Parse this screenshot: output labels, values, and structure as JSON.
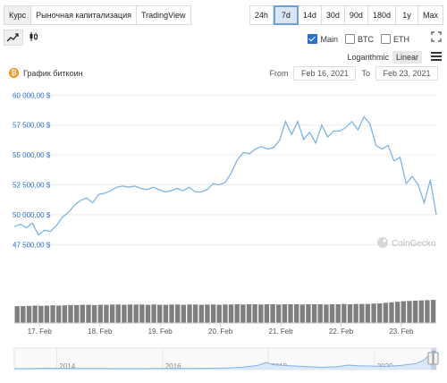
{
  "tabs": [
    {
      "label": "Курс",
      "active": true
    },
    {
      "label": "Рыночная капитализация",
      "active": false
    },
    {
      "label": "TradingView",
      "active": false
    }
  ],
  "ranges": [
    {
      "label": "24h",
      "active": false
    },
    {
      "label": "7d",
      "active": true
    },
    {
      "label": "14d",
      "active": false
    },
    {
      "label": "30d",
      "active": false
    },
    {
      "label": "90d",
      "active": false
    },
    {
      "label": "180d",
      "active": false
    },
    {
      "label": "1y",
      "active": false
    },
    {
      "label": "Max",
      "active": false
    }
  ],
  "series_toggles": [
    {
      "label": "Main",
      "checked": true
    },
    {
      "label": "BTC",
      "checked": false
    },
    {
      "label": "ETH",
      "checked": false
    }
  ],
  "scale": {
    "log_label": "Logarithmic",
    "linear_label": "Linear",
    "active": "Linear"
  },
  "chart_title": "График биткоин",
  "coin_symbol": "₿",
  "date_range": {
    "from_label": "From",
    "from_value": "Feb 16, 2021",
    "to_label": "To",
    "to_value": "Feb 23, 2021"
  },
  "watermark": "CoinGecko",
  "colors": {
    "line": "#7db4e6",
    "volume": "#7f7f7f",
    "accent": "#2a6fcf",
    "btc": "#f7931a"
  },
  "chart_data": {
    "type": "line",
    "y_ticks": [
      "60 000,00 $",
      "57 500,00 $",
      "55 000,00 $",
      "52 500,00 $",
      "50 000,00 $",
      "47 500,00 $"
    ],
    "y_tick_values": [
      60000,
      57500,
      55000,
      52500,
      50000,
      47500
    ],
    "ylim": [
      47000,
      60400
    ],
    "x_ticks": [
      "17. Feb",
      "18. Feb",
      "19. Feb",
      "20. Feb",
      "21. Feb",
      "22. Feb",
      "23. Feb"
    ],
    "x_tick_values": [
      0.42,
      1.42,
      2.42,
      3.42,
      4.42,
      5.42,
      6.42
    ],
    "xlim": [
      0,
      7.0
    ],
    "x": [
      0,
      0.1,
      0.2,
      0.3,
      0.4,
      0.5,
      0.6,
      0.7,
      0.8,
      0.9,
      1.0,
      1.1,
      1.2,
      1.3,
      1.4,
      1.5,
      1.6,
      1.7,
      1.8,
      1.9,
      2.0,
      2.1,
      2.2,
      2.3,
      2.4,
      2.5,
      2.6,
      2.7,
      2.8,
      2.9,
      3.0,
      3.1,
      3.2,
      3.3,
      3.4,
      3.5,
      3.6,
      3.7,
      3.8,
      3.9,
      4.0,
      4.1,
      4.2,
      4.3,
      4.4,
      4.5,
      4.6,
      4.7,
      4.8,
      4.9,
      5.0,
      5.1,
      5.2,
      5.3,
      5.4,
      5.5,
      5.6,
      5.7,
      5.8,
      5.9,
      6.0,
      6.1,
      6.2,
      6.3,
      6.4,
      6.5,
      6.6,
      6.7,
      6.8,
      6.9,
      7.0
    ],
    "y": [
      49000,
      49200,
      48900,
      49300,
      48300,
      48700,
      48600,
      49100,
      49800,
      50200,
      50800,
      51200,
      51400,
      51000,
      51700,
      51800,
      52000,
      52300,
      52400,
      52300,
      52400,
      52200,
      52100,
      52300,
      52100,
      51900,
      52000,
      52200,
      52000,
      52300,
      51900,
      51900,
      52100,
      52600,
      52500,
      52700,
      53500,
      54600,
      55200,
      55100,
      55500,
      55700,
      55500,
      55600,
      56200,
      57800,
      56700,
      57800,
      56300,
      56900,
      56000,
      57500,
      56500,
      57000,
      57000,
      57300,
      57800,
      57100,
      58200,
      57600,
      55800,
      55500,
      55800,
      54500,
      54800,
      52600,
      53200,
      52500,
      51000,
      52900,
      50000
    ],
    "volume": {
      "values": [
        0.62,
        0.62,
        0.63,
        0.64,
        0.63,
        0.64,
        0.65,
        0.64,
        0.65,
        0.66,
        0.66,
        0.67,
        0.67,
        0.66,
        0.67,
        0.67,
        0.68,
        0.68,
        0.67,
        0.68,
        0.68,
        0.68,
        0.67,
        0.68,
        0.67,
        0.67,
        0.68,
        0.68,
        0.67,
        0.68,
        0.68,
        0.67,
        0.68,
        0.68,
        0.67,
        0.68,
        0.68,
        0.69,
        0.68,
        0.69,
        0.69,
        0.68,
        0.69,
        0.69,
        0.68,
        0.69,
        0.69,
        0.69,
        0.68,
        0.69,
        0.69,
        0.69,
        0.68,
        0.69,
        0.69,
        0.7,
        0.69,
        0.7,
        0.7,
        0.7,
        0.71,
        0.72,
        0.74,
        0.76,
        0.78,
        0.8,
        0.81,
        0.82,
        0.83,
        0.84,
        0.85
      ]
    },
    "navigator": {
      "x_ticks": [
        "2014",
        "2016",
        "2018",
        "2020"
      ],
      "x_tick_values": [
        2014.0,
        2016.0,
        2018.0,
        2020.0
      ],
      "xlim": [
        2013.2,
        2021.17
      ],
      "x": [
        2013.2,
        2013.5,
        2013.8,
        2014.0,
        2014.4,
        2014.8,
        2015.2,
        2015.6,
        2016.0,
        2016.4,
        2016.8,
        2017.2,
        2017.5,
        2017.8,
        2017.95,
        2018.1,
        2018.4,
        2018.7,
        2019.0,
        2019.3,
        2019.5,
        2019.7,
        2020.0,
        2020.2,
        2020.5,
        2020.8,
        2020.95,
        2021.05,
        2021.12,
        2021.17
      ],
      "y": [
        0.3,
        0.4,
        1.5,
        1.0,
        0.8,
        0.6,
        0.4,
        0.4,
        0.6,
        0.8,
        1.2,
        2.0,
        4.5,
        10,
        19,
        12,
        9,
        7,
        4,
        6,
        11,
        9,
        8,
        7,
        10,
        16,
        28,
        45,
        55,
        50
      ]
    }
  }
}
